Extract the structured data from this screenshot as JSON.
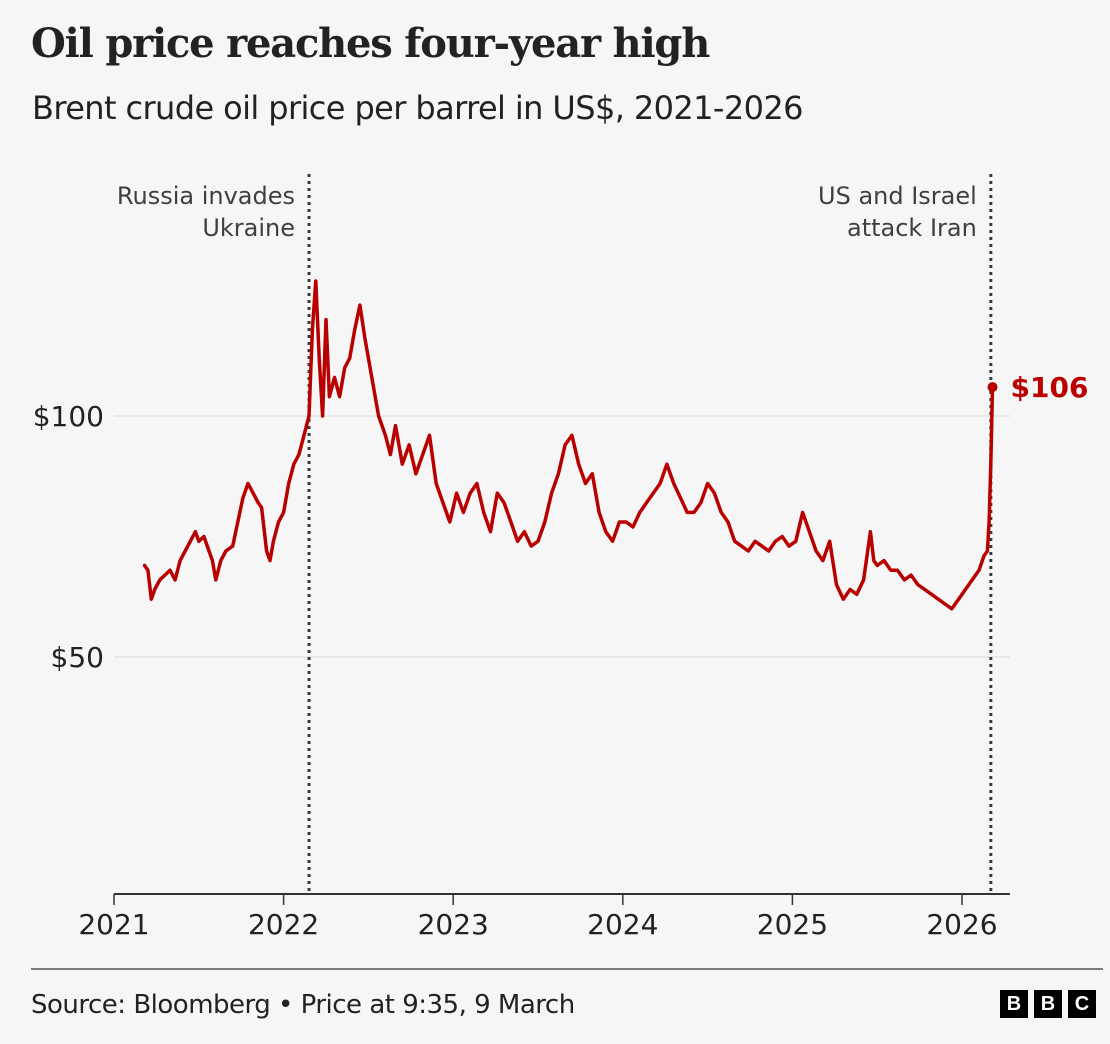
{
  "header": {
    "title": "Oil price reaches four-year high",
    "subtitle": "Brent crude oil price per barrel in US$, 2021-2026"
  },
  "footer": {
    "source": "Source: Bloomberg • Price at 9:35, 9 March",
    "logo_letters": [
      "B",
      "B",
      "C"
    ]
  },
  "colors": {
    "line": "#b80000",
    "annotation_line": "#3a3a3a",
    "gridline": "#e8e8e8",
    "axis": "#333333"
  },
  "chart_data": {
    "type": "line",
    "title": "Oil price reaches four-year high",
    "subtitle": "Brent crude oil price per barrel in US$, 2021-2026",
    "xlabel": "",
    "ylabel": "",
    "xlim": [
      2021,
      2026.3
    ],
    "ylim": [
      0,
      130
    ],
    "x_ticks": [
      2021,
      2022,
      2023,
      2024,
      2025,
      2026
    ],
    "x_tick_labels": [
      "2021",
      "2022",
      "2023",
      "2024",
      "2025",
      "2026"
    ],
    "y_ticks": [
      50,
      100
    ],
    "y_tick_labels": [
      "$50",
      "$100"
    ],
    "grid": "horizontal",
    "legend": "none",
    "series": [
      {
        "name": "Brent crude",
        "x": [
          2021.18,
          2021.2,
          2021.22,
          2021.24,
          2021.27,
          2021.3,
          2021.33,
          2021.36,
          2021.39,
          2021.42,
          2021.45,
          2021.48,
          2021.5,
          2021.53,
          2021.56,
          2021.58,
          2021.6,
          2021.63,
          2021.66,
          2021.7,
          2021.73,
          2021.76,
          2021.79,
          2021.82,
          2021.85,
          2021.87,
          2021.9,
          2021.92,
          2021.94,
          2021.97,
          2022.0,
          2022.03,
          2022.06,
          2022.09,
          2022.12,
          2022.15,
          2022.17,
          2022.19,
          2022.21,
          2022.23,
          2022.25,
          2022.27,
          2022.3,
          2022.33,
          2022.36,
          2022.39,
          2022.42,
          2022.45,
          2022.48,
          2022.5,
          2022.53,
          2022.56,
          2022.6,
          2022.63,
          2022.66,
          2022.7,
          2022.74,
          2022.78,
          2022.82,
          2022.86,
          2022.9,
          2022.94,
          2022.98,
          2023.02,
          2023.06,
          2023.1,
          2023.14,
          2023.18,
          2023.22,
          2023.26,
          2023.3,
          2023.34,
          2023.38,
          2023.42,
          2023.46,
          2023.5,
          2023.54,
          2023.58,
          2023.62,
          2023.66,
          2023.7,
          2023.74,
          2023.78,
          2023.82,
          2023.86,
          2023.9,
          2023.94,
          2023.98,
          2024.02,
          2024.06,
          2024.1,
          2024.14,
          2024.18,
          2024.22,
          2024.26,
          2024.3,
          2024.34,
          2024.38,
          2024.42,
          2024.46,
          2024.5,
          2024.54,
          2024.58,
          2024.62,
          2024.66,
          2024.7,
          2024.74,
          2024.78,
          2024.82,
          2024.86,
          2024.9,
          2024.94,
          2024.98,
          2025.02,
          2025.06,
          2025.1,
          2025.14,
          2025.18,
          2025.22,
          2025.26,
          2025.3,
          2025.34,
          2025.38,
          2025.42,
          2025.46,
          2025.48,
          2025.5,
          2025.54,
          2025.58,
          2025.62,
          2025.66,
          2025.7,
          2025.74,
          2025.78,
          2025.82,
          2025.86,
          2025.9,
          2025.94,
          2025.98,
          2026.02,
          2026.06,
          2026.1,
          2026.13,
          2026.15,
          2026.16,
          2026.17,
          2026.18
        ],
        "values": [
          69,
          68,
          62,
          64,
          66,
          67,
          68,
          66,
          70,
          72,
          74,
          76,
          74,
          75,
          72,
          70,
          66,
          70,
          72,
          73,
          78,
          83,
          86,
          84,
          82,
          81,
          72,
          70,
          74,
          78,
          80,
          86,
          90,
          92,
          96,
          100,
          118,
          128,
          112,
          100,
          120,
          104,
          108,
          104,
          110,
          112,
          118,
          123,
          116,
          112,
          106,
          100,
          96,
          92,
          98,
          90,
          94,
          88,
          92,
          96,
          86,
          82,
          78,
          84,
          80,
          84,
          86,
          80,
          76,
          84,
          82,
          78,
          74,
          76,
          73,
          74,
          78,
          84,
          88,
          94,
          96,
          90,
          86,
          88,
          80,
          76,
          74,
          78,
          78,
          77,
          80,
          82,
          84,
          86,
          90,
          86,
          83,
          80,
          80,
          82,
          86,
          84,
          80,
          78,
          74,
          73,
          72,
          74,
          73,
          72,
          74,
          75,
          73,
          74,
          80,
          76,
          72,
          70,
          74,
          65,
          62,
          64,
          63,
          66,
          76,
          70,
          69,
          70,
          68,
          68,
          66,
          67,
          65,
          64,
          63,
          62,
          61,
          60,
          62,
          64,
          66,
          68,
          71,
          72,
          78,
          90,
          106
        ]
      }
    ],
    "annotations": [
      {
        "x": 2022.15,
        "label": [
          "Russia invades",
          "Ukraine"
        ],
        "style": "dotted vertical line"
      },
      {
        "x": 2026.17,
        "label": [
          "US and Israel",
          "attack Iran"
        ],
        "style": "dotted vertical line"
      }
    ],
    "end_label": {
      "x": 2026.18,
      "value": 106,
      "text": "$106"
    }
  }
}
